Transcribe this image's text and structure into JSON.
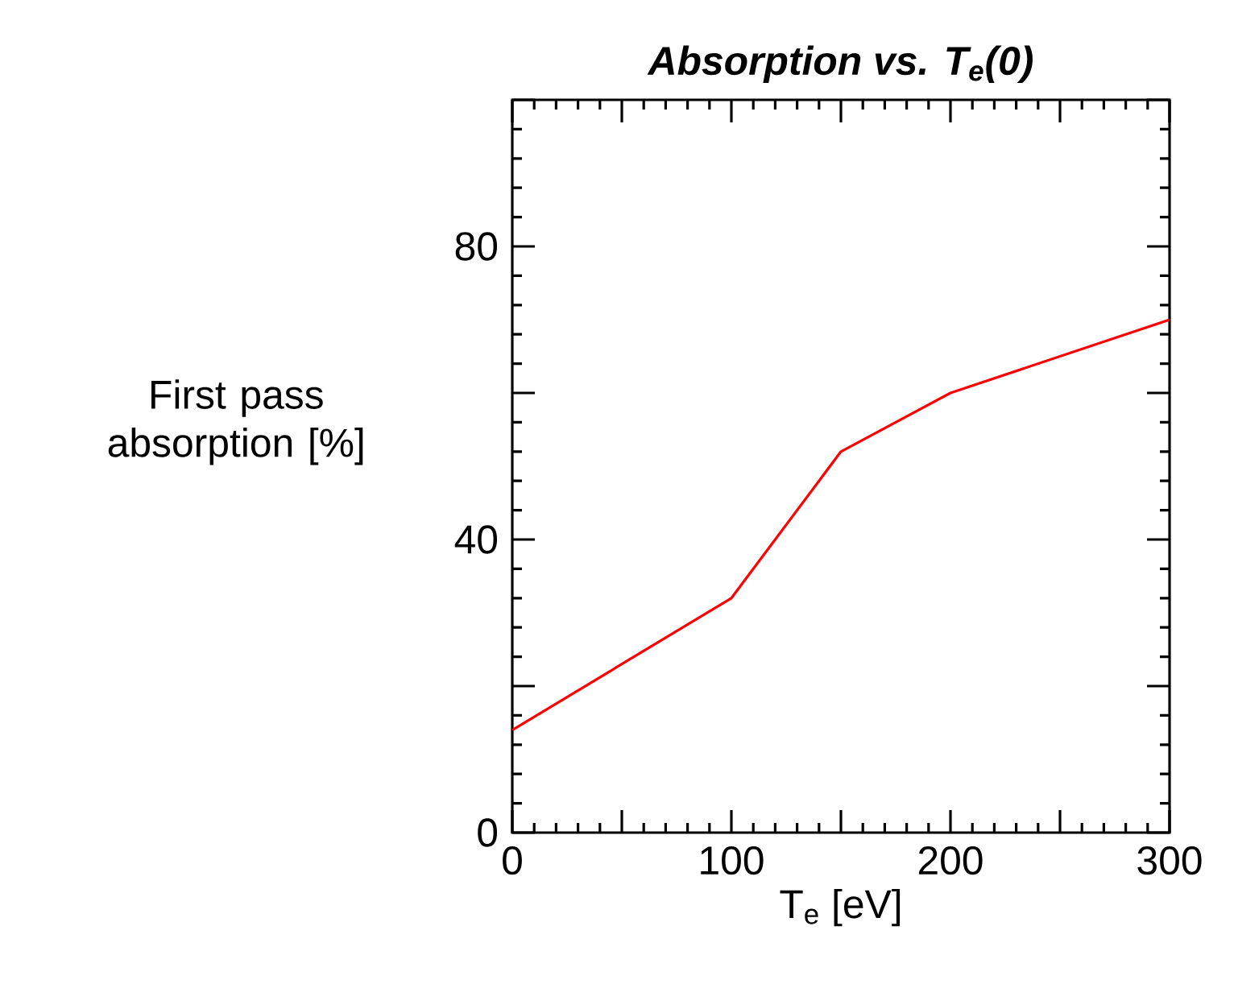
{
  "chart_data": {
    "type": "line",
    "title": "Absorption vs. T$_{e}$(0)",
    "xlabel": "T$_{e}$ [eV]",
    "ylabel": "First pass absorption [%]",
    "x": [
      0,
      100,
      150,
      200,
      300
    ],
    "series": [
      {
        "color": "#ff0000",
        "values": [
          14,
          32,
          52,
          60,
          70
        ]
      }
    ],
    "xlim": [
      0,
      300
    ],
    "ylim": [
      0,
      100
    ],
    "xticks": [
      0,
      {
        "value": 50,
        "label": null
      },
      100,
      {
        "value": 150,
        "label": null
      },
      200,
      {
        "value": 250,
        "label": null
      },
      300
    ],
    "yticks": [
      0,
      {
        "value": 20,
        "label": null
      },
      40,
      {
        "value": 60,
        "label": null
      },
      80,
      {
        "value": 100,
        "label": null
      }
    ],
    "marker": "none",
    "line_style": "solid"
  }
}
